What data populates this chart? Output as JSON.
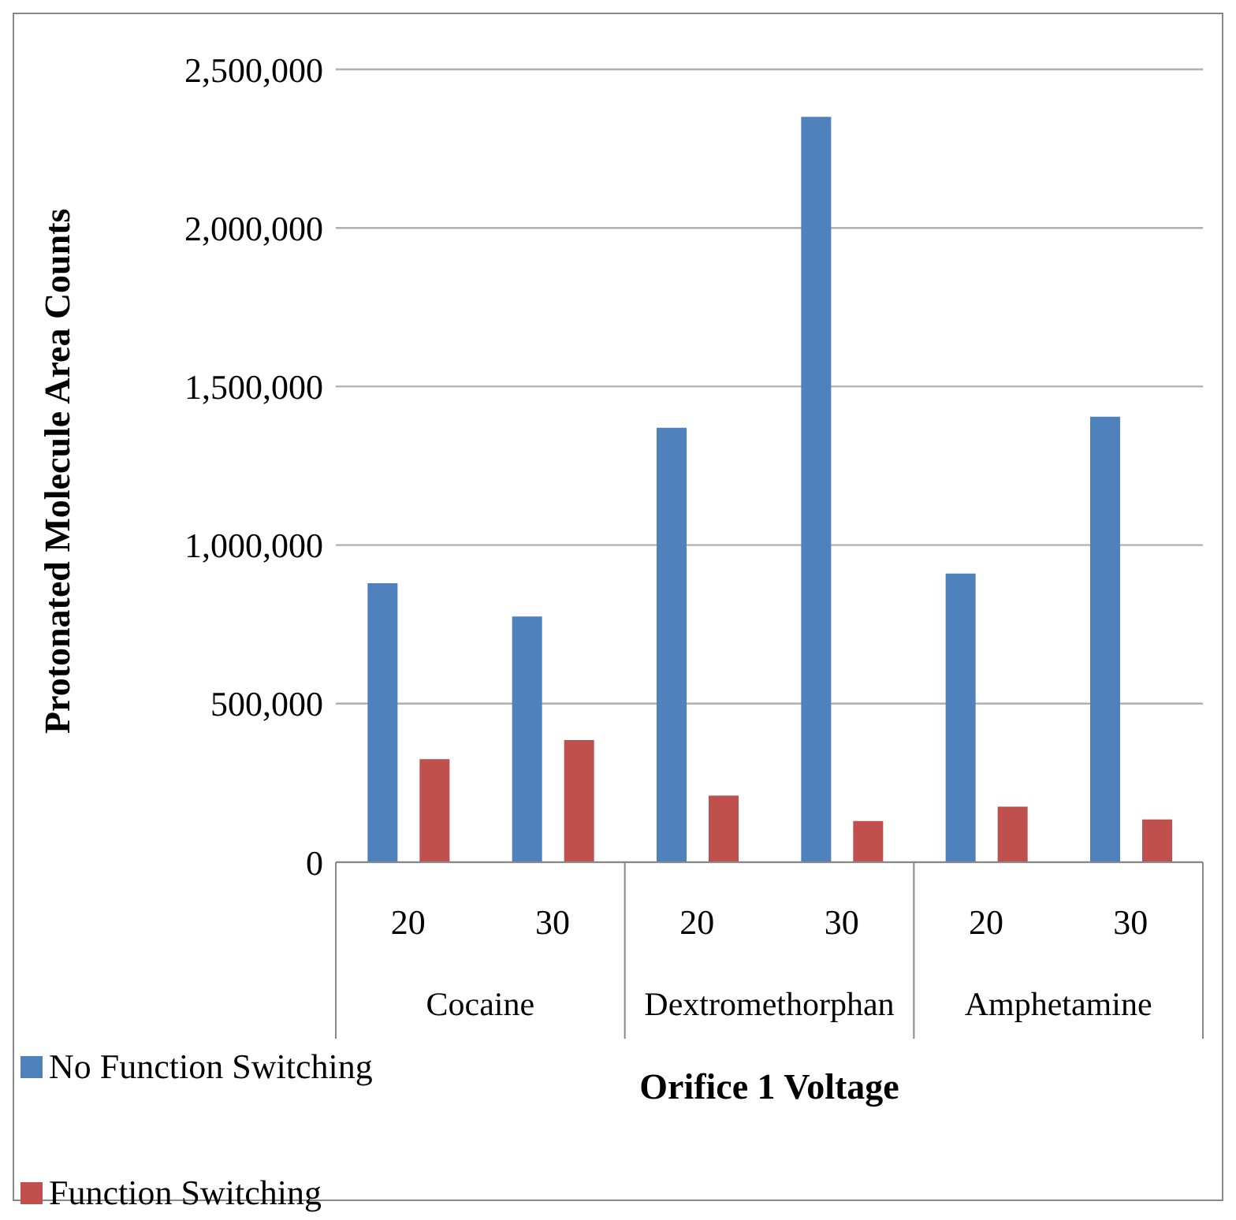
{
  "chart_data": {
    "type": "bar",
    "categories": [
      "20",
      "30",
      "20",
      "30",
      "20",
      "30"
    ],
    "annotations": [
      "Cocaine",
      "Dextromethorphan",
      "Amphetamine"
    ],
    "series": [
      {
        "name": "No Function Switching",
        "color": "#4f81bd",
        "values": [
          880000,
          775000,
          1370000,
          2350000,
          910000,
          1405000
        ]
      },
      {
        "name": "Function Switching",
        "color": "#c0504d",
        "values": [
          325000,
          385000,
          210000,
          130000,
          175000,
          135000
        ]
      }
    ],
    "xlabel": "Orifice 1 Voltage",
    "ylabel": "Protonated Molecule Area Counts",
    "ylim": [
      0,
      2500000
    ],
    "yticks": [
      0,
      {
        "value": 500000,
        "label": "500,000"
      },
      {
        "value": 1000000,
        "label": "1,000,000"
      },
      {
        "value": 1500000,
        "label": "1,500,000"
      },
      {
        "value": 2000000,
        "label": "2,000,000"
      },
      {
        "value": 2500000,
        "label": "2,500,000"
      }
    ],
    "grid": "y",
    "legend": "bottom left"
  }
}
